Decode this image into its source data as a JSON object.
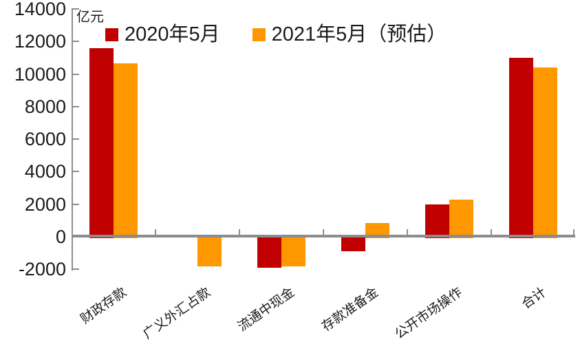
{
  "chart_data": {
    "type": "bar",
    "title": "",
    "unit_label": "亿元",
    "categories": [
      "财政存款",
      "广义外汇占款",
      "流通中现金",
      "存款准备金",
      "公开市场操作",
      "合计"
    ],
    "series": [
      {
        "name": "2020年5月",
        "color": "#c00000",
        "values": [
          11600,
          0,
          -1800,
          -800,
          2000,
          11000
        ]
      },
      {
        "name": "2021年5月（预估）",
        "color": "#ff9800",
        "values": [
          10650,
          -1750,
          -1750,
          850,
          2300,
          10400
        ]
      }
    ],
    "yticks": [
      14000,
      12000,
      10000,
      8000,
      6000,
      4000,
      2000,
      0,
      -2000
    ],
    "ylim": [
      -2000,
      14000
    ],
    "ytick_step": 2000,
    "grid": false,
    "legend_position": "top-center",
    "axis_color": "#8c8c8c",
    "text_color": "#1a1a1a",
    "background_color": "#ffffff"
  }
}
